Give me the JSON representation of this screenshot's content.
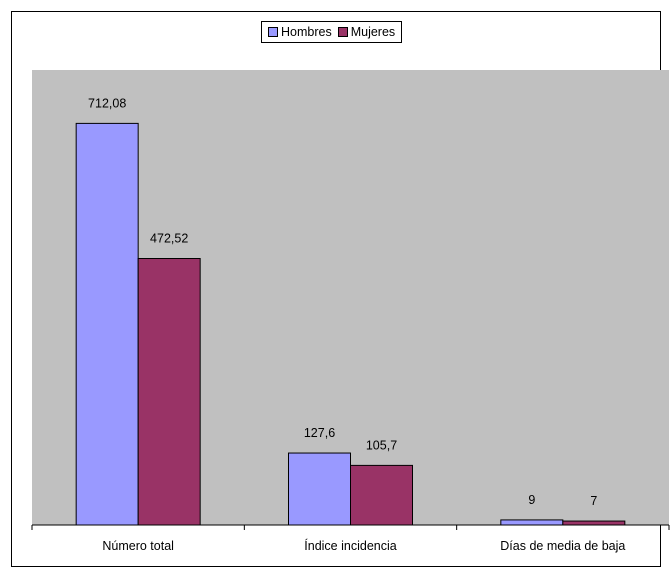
{
  "chart_data": {
    "type": "bar",
    "categories": [
      "Número total",
      "Índice incidencia",
      "Días de media de baja"
    ],
    "series": [
      {
        "name": "Hombres",
        "values": [
          712.08,
          127.6,
          9
        ],
        "labels": [
          "712,08",
          "127,6",
          "9"
        ],
        "color": "#9999ff"
      },
      {
        "name": "Mujeres",
        "values": [
          472.52,
          105.7,
          7
        ],
        "labels": [
          "472,52",
          "105,7",
          "7"
        ],
        "color": "#993366"
      }
    ],
    "ylim": [
      0,
      800
    ],
    "grid": false,
    "legend_position": "top-center",
    "plot_background": "#c0c0c0"
  }
}
